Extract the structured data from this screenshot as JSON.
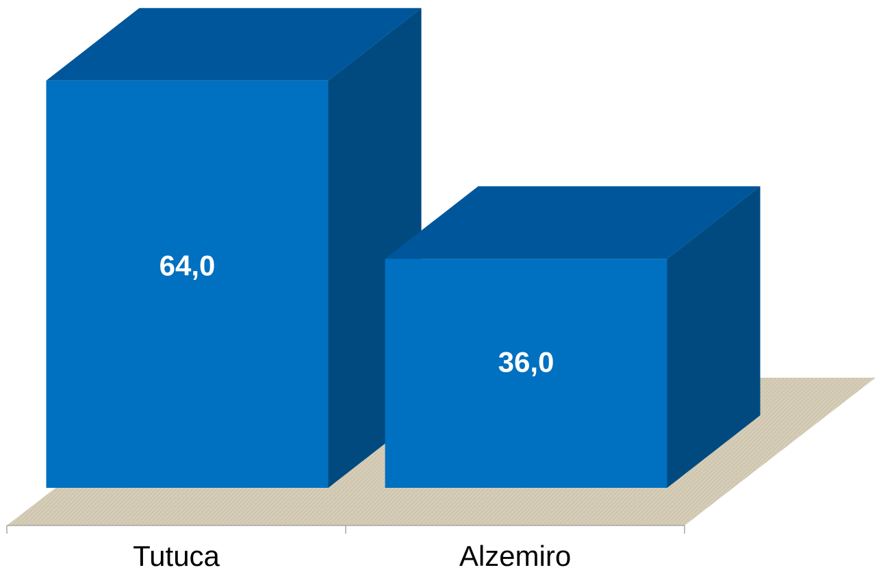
{
  "chart_data": {
    "type": "bar",
    "categories": [
      "Tutuca",
      "Alzemiro"
    ],
    "values": [
      64.0,
      36.0
    ],
    "data_labels": [
      "64,0",
      "36,0"
    ],
    "title": "",
    "xlabel": "",
    "ylabel": "",
    "ylim": [
      0,
      70
    ],
    "grid": false,
    "legend": "none",
    "style": "3d-column",
    "colors": {
      "bar_front": "#0070C0",
      "bar_top": "#00569A",
      "bar_side": "#004A80",
      "floor": "#D6CDB8",
      "axis": "#A6A6A6"
    }
  }
}
